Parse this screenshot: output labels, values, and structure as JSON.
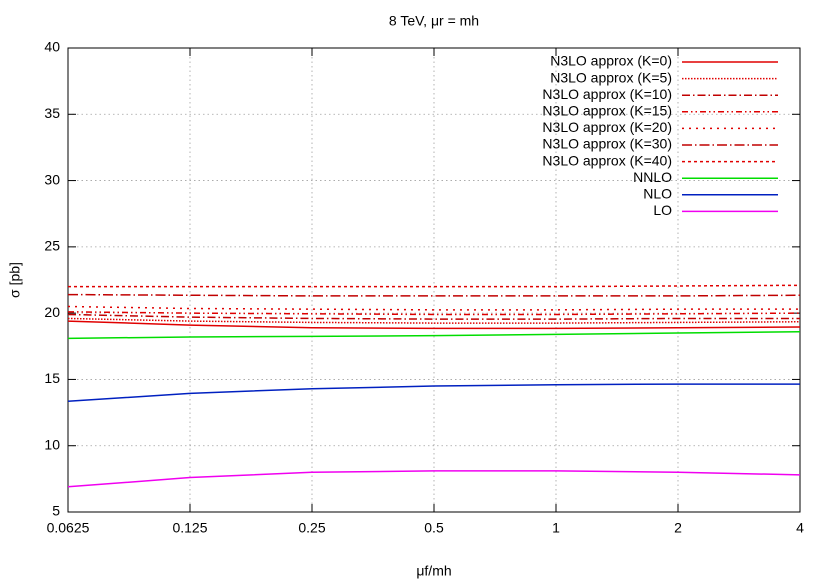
{
  "chart_data": {
    "type": "line",
    "title": "8 TeV, μr = mh",
    "x_label": "μf/mh",
    "y_label": "σ [pb]",
    "x": [
      0.0625,
      0.125,
      0.25,
      0.5,
      1,
      2,
      4
    ],
    "xlim": [
      0.0625,
      4
    ],
    "xticks": [
      0.0625,
      0.125,
      0.25,
      0.5,
      1,
      2,
      4
    ],
    "x_log_base": 2,
    "ylim": [
      5,
      40
    ],
    "yticks": [
      5,
      10,
      15,
      20,
      25,
      30,
      35,
      40
    ],
    "grid": true,
    "legend": "top-right",
    "series": [
      {
        "name": "N3LO approx (K=0)",
        "color": "#e00000",
        "values": [
          19.4,
          19.1,
          18.9,
          18.85,
          18.85,
          18.9,
          18.95
        ]
      },
      {
        "name": "N3LO approx (K=5)",
        "color": "#e00000",
        "values": [
          19.6,
          19.4,
          19.3,
          19.25,
          19.25,
          19.3,
          19.35
        ]
      },
      {
        "name": "N3LO approx (K=10)",
        "color": "#c00000",
        "values": [
          19.9,
          19.7,
          19.6,
          19.55,
          19.55,
          19.6,
          19.6
        ]
      },
      {
        "name": "N3LO approx (K=15)",
        "color": "#e00000",
        "values": [
          20.1,
          20.0,
          19.95,
          19.9,
          19.9,
          19.95,
          20.0
        ]
      },
      {
        "name": "N3LO approx (K=20)",
        "color": "#e00000",
        "values": [
          20.5,
          20.35,
          20.3,
          20.25,
          20.25,
          20.3,
          20.3
        ]
      },
      {
        "name": "N3LO approx (K=30)",
        "color": "#c00000",
        "values": [
          21.4,
          21.35,
          21.3,
          21.3,
          21.3,
          21.3,
          21.35
        ]
      },
      {
        "name": "N3LO approx (K=40)",
        "color": "#e00000",
        "values": [
          22.0,
          22.0,
          22.0,
          22.0,
          22.0,
          22.05,
          22.1
        ]
      },
      {
        "name": "NNLO",
        "color": "#00dd00",
        "values": [
          18.1,
          18.2,
          18.25,
          18.3,
          18.4,
          18.5,
          18.6
        ]
      },
      {
        "name": "NLO",
        "color": "#0020c0",
        "values": [
          13.35,
          13.95,
          14.3,
          14.5,
          14.6,
          14.65,
          14.65
        ]
      },
      {
        "name": "LO",
        "color": "#f000f0",
        "values": [
          6.9,
          7.6,
          8.0,
          8.1,
          8.1,
          8.0,
          7.8
        ]
      }
    ]
  }
}
